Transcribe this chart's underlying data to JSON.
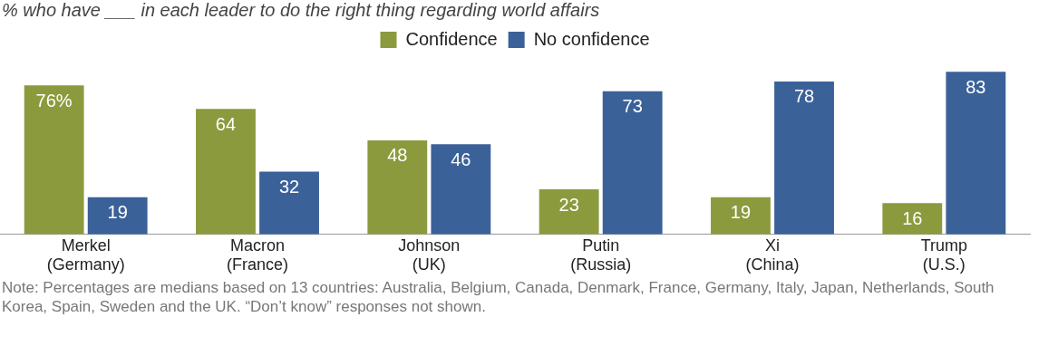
{
  "chart_data": {
    "type": "bar",
    "title": "% who have ___ in each leader to do the right thing regarding world affairs",
    "categories": [
      "Merkel\n(Germany)",
      "Macron\n(France)",
      "Johnson\n(UK)",
      "Putin\n(Russia)",
      "Xi\n(China)",
      "Trump\n(U.S.)"
    ],
    "series": [
      {
        "name": "Confidence",
        "color": "#8c9a3e",
        "values": [
          76,
          64,
          48,
          23,
          19,
          16
        ],
        "value_labels": [
          "76%",
          "64",
          "48",
          "23",
          "19",
          "16"
        ]
      },
      {
        "name": "No confidence",
        "color": "#3b6199",
        "values": [
          19,
          32,
          46,
          73,
          78,
          83
        ],
        "value_labels": [
          "19",
          "32",
          "46",
          "73",
          "78",
          "83"
        ]
      }
    ],
    "legend": "top",
    "annotations": [
      "Note: Percentages are medians based on 13 countries: Australia, Belgium, Canada, Denmark, France, Germany, Italy, Japan, Netherlands, South Korea, Spain, Sweden and the UK. “Don’t know” responses not shown."
    ]
  }
}
